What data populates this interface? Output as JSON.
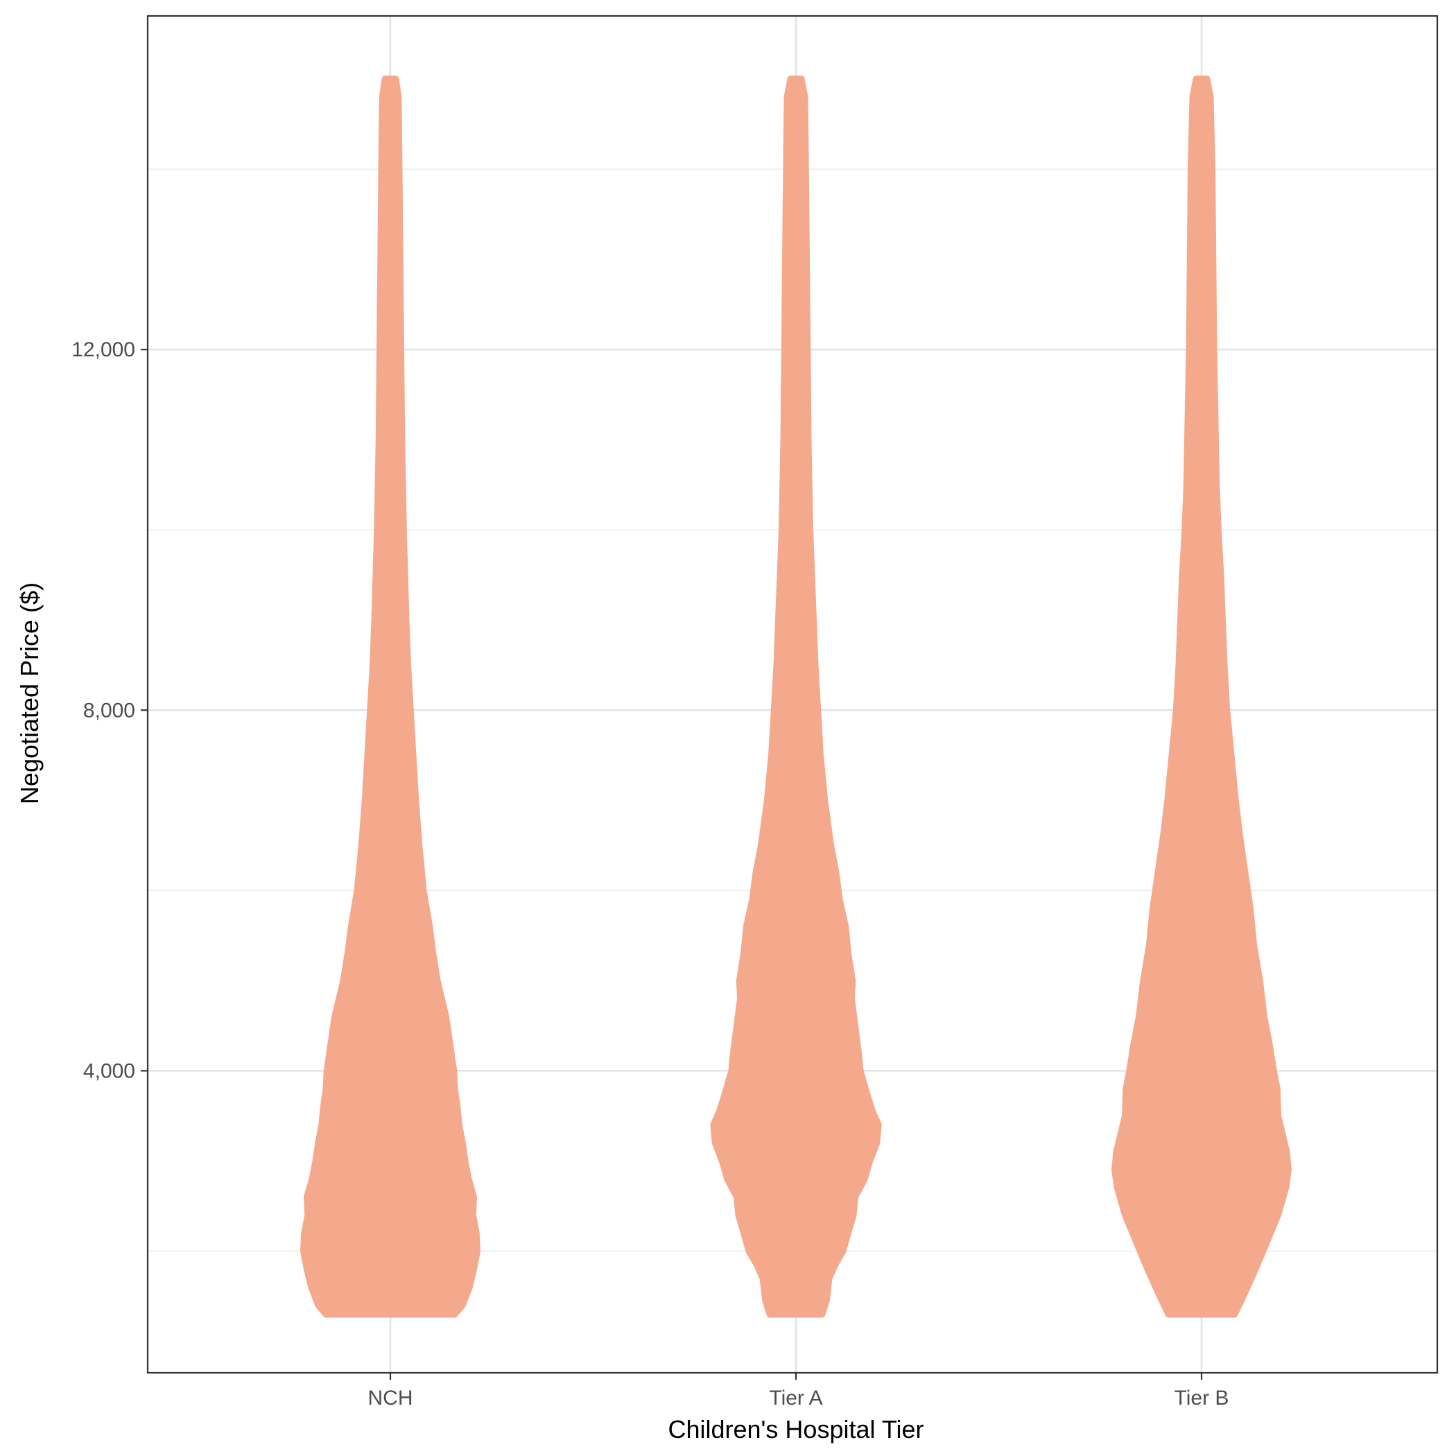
{
  "chart_data": {
    "type": "violin",
    "xlabel": "Children's Hospital Tier",
    "ylabel": "Negotiated Price ($)",
    "categories": [
      "NCH",
      "Tier A",
      "Tier B"
    ],
    "ylim": [
      650,
      15700
    ],
    "y_ticks": [
      {
        "value": 4000,
        "label": "4,000"
      },
      {
        "value": 8000,
        "label": "8,000"
      },
      {
        "value": 12000,
        "label": "12,000"
      }
    ],
    "y_minor_gridlines": [
      2000,
      6000,
      10000,
      14000
    ],
    "grid": true,
    "fill_color": "#F4A98C",
    "density_scale_note": "violin profiles: [price, relative half-width 0-1]",
    "violins": [
      {
        "category": "NCH",
        "min": 1300,
        "max": 15000,
        "profile": [
          [
            1300,
            0.74
          ],
          [
            1400,
            0.83
          ],
          [
            1600,
            0.91
          ],
          [
            1800,
            0.96
          ],
          [
            2000,
            1.0
          ],
          [
            2200,
            0.99
          ],
          [
            2400,
            0.95
          ],
          [
            2600,
            0.96
          ],
          [
            2800,
            0.9
          ],
          [
            3000,
            0.86
          ],
          [
            3200,
            0.83
          ],
          [
            3400,
            0.79
          ],
          [
            3600,
            0.77
          ],
          [
            3800,
            0.74
          ],
          [
            4000,
            0.73
          ],
          [
            4200,
            0.7
          ],
          [
            4400,
            0.67
          ],
          [
            4600,
            0.64
          ],
          [
            4800,
            0.59
          ],
          [
            5000,
            0.54
          ],
          [
            5300,
            0.49
          ],
          [
            5600,
            0.45
          ],
          [
            6000,
            0.38
          ],
          [
            6500,
            0.33
          ],
          [
            7000,
            0.29
          ],
          [
            7500,
            0.26
          ],
          [
            8000,
            0.23
          ],
          [
            8500,
            0.2
          ],
          [
            9000,
            0.18
          ],
          [
            10000,
            0.15
          ],
          [
            11000,
            0.13
          ],
          [
            12000,
            0.12
          ],
          [
            13000,
            0.11
          ],
          [
            14000,
            0.1
          ],
          [
            14800,
            0.09
          ],
          [
            15000,
            0.06
          ]
        ]
      },
      {
        "category": "Tier A",
        "min": 1300,
        "max": 15000,
        "profile": [
          [
            1300,
            0.3
          ],
          [
            1450,
            0.35
          ],
          [
            1700,
            0.38
          ],
          [
            1850,
            0.45
          ],
          [
            2000,
            0.54
          ],
          [
            2200,
            0.6
          ],
          [
            2400,
            0.66
          ],
          [
            2600,
            0.68
          ],
          [
            2800,
            0.79
          ],
          [
            3000,
            0.85
          ],
          [
            3200,
            0.93
          ],
          [
            3400,
            0.95
          ],
          [
            3550,
            0.88
          ],
          [
            3800,
            0.8
          ],
          [
            4000,
            0.74
          ],
          [
            4200,
            0.72
          ],
          [
            4500,
            0.68
          ],
          [
            4800,
            0.64
          ],
          [
            5000,
            0.65
          ],
          [
            5300,
            0.6
          ],
          [
            5600,
            0.57
          ],
          [
            5900,
            0.5
          ],
          [
            6200,
            0.46
          ],
          [
            6500,
            0.4
          ],
          [
            7000,
            0.33
          ],
          [
            7500,
            0.28
          ],
          [
            8000,
            0.25
          ],
          [
            8500,
            0.22
          ],
          [
            9000,
            0.2
          ],
          [
            9500,
            0.18
          ],
          [
            10000,
            0.16
          ],
          [
            11000,
            0.14
          ],
          [
            12000,
            0.13
          ],
          [
            13000,
            0.12
          ],
          [
            14000,
            0.11
          ],
          [
            14800,
            0.1
          ],
          [
            15000,
            0.06
          ]
        ]
      },
      {
        "category": "Tier B",
        "min": 1300,
        "max": 15000,
        "profile": [
          [
            1300,
            0.38
          ],
          [
            1500,
            0.48
          ],
          [
            1800,
            0.62
          ],
          [
            2100,
            0.75
          ],
          [
            2400,
            0.88
          ],
          [
            2700,
            0.97
          ],
          [
            2900,
            1.0
          ],
          [
            3100,
            0.98
          ],
          [
            3300,
            0.93
          ],
          [
            3500,
            0.88
          ],
          [
            3800,
            0.87
          ],
          [
            4000,
            0.83
          ],
          [
            4300,
            0.78
          ],
          [
            4600,
            0.72
          ],
          [
            5000,
            0.67
          ],
          [
            5400,
            0.6
          ],
          [
            5800,
            0.56
          ],
          [
            6200,
            0.5
          ],
          [
            6600,
            0.44
          ],
          [
            7000,
            0.39
          ],
          [
            7500,
            0.34
          ],
          [
            8000,
            0.29
          ],
          [
            8500,
            0.26
          ],
          [
            9000,
            0.24
          ],
          [
            9500,
            0.22
          ],
          [
            10000,
            0.19
          ],
          [
            10500,
            0.17
          ],
          [
            11000,
            0.16
          ],
          [
            12000,
            0.14
          ],
          [
            13000,
            0.13
          ],
          [
            14000,
            0.12
          ],
          [
            14800,
            0.1
          ],
          [
            15000,
            0.06
          ]
        ]
      }
    ]
  }
}
